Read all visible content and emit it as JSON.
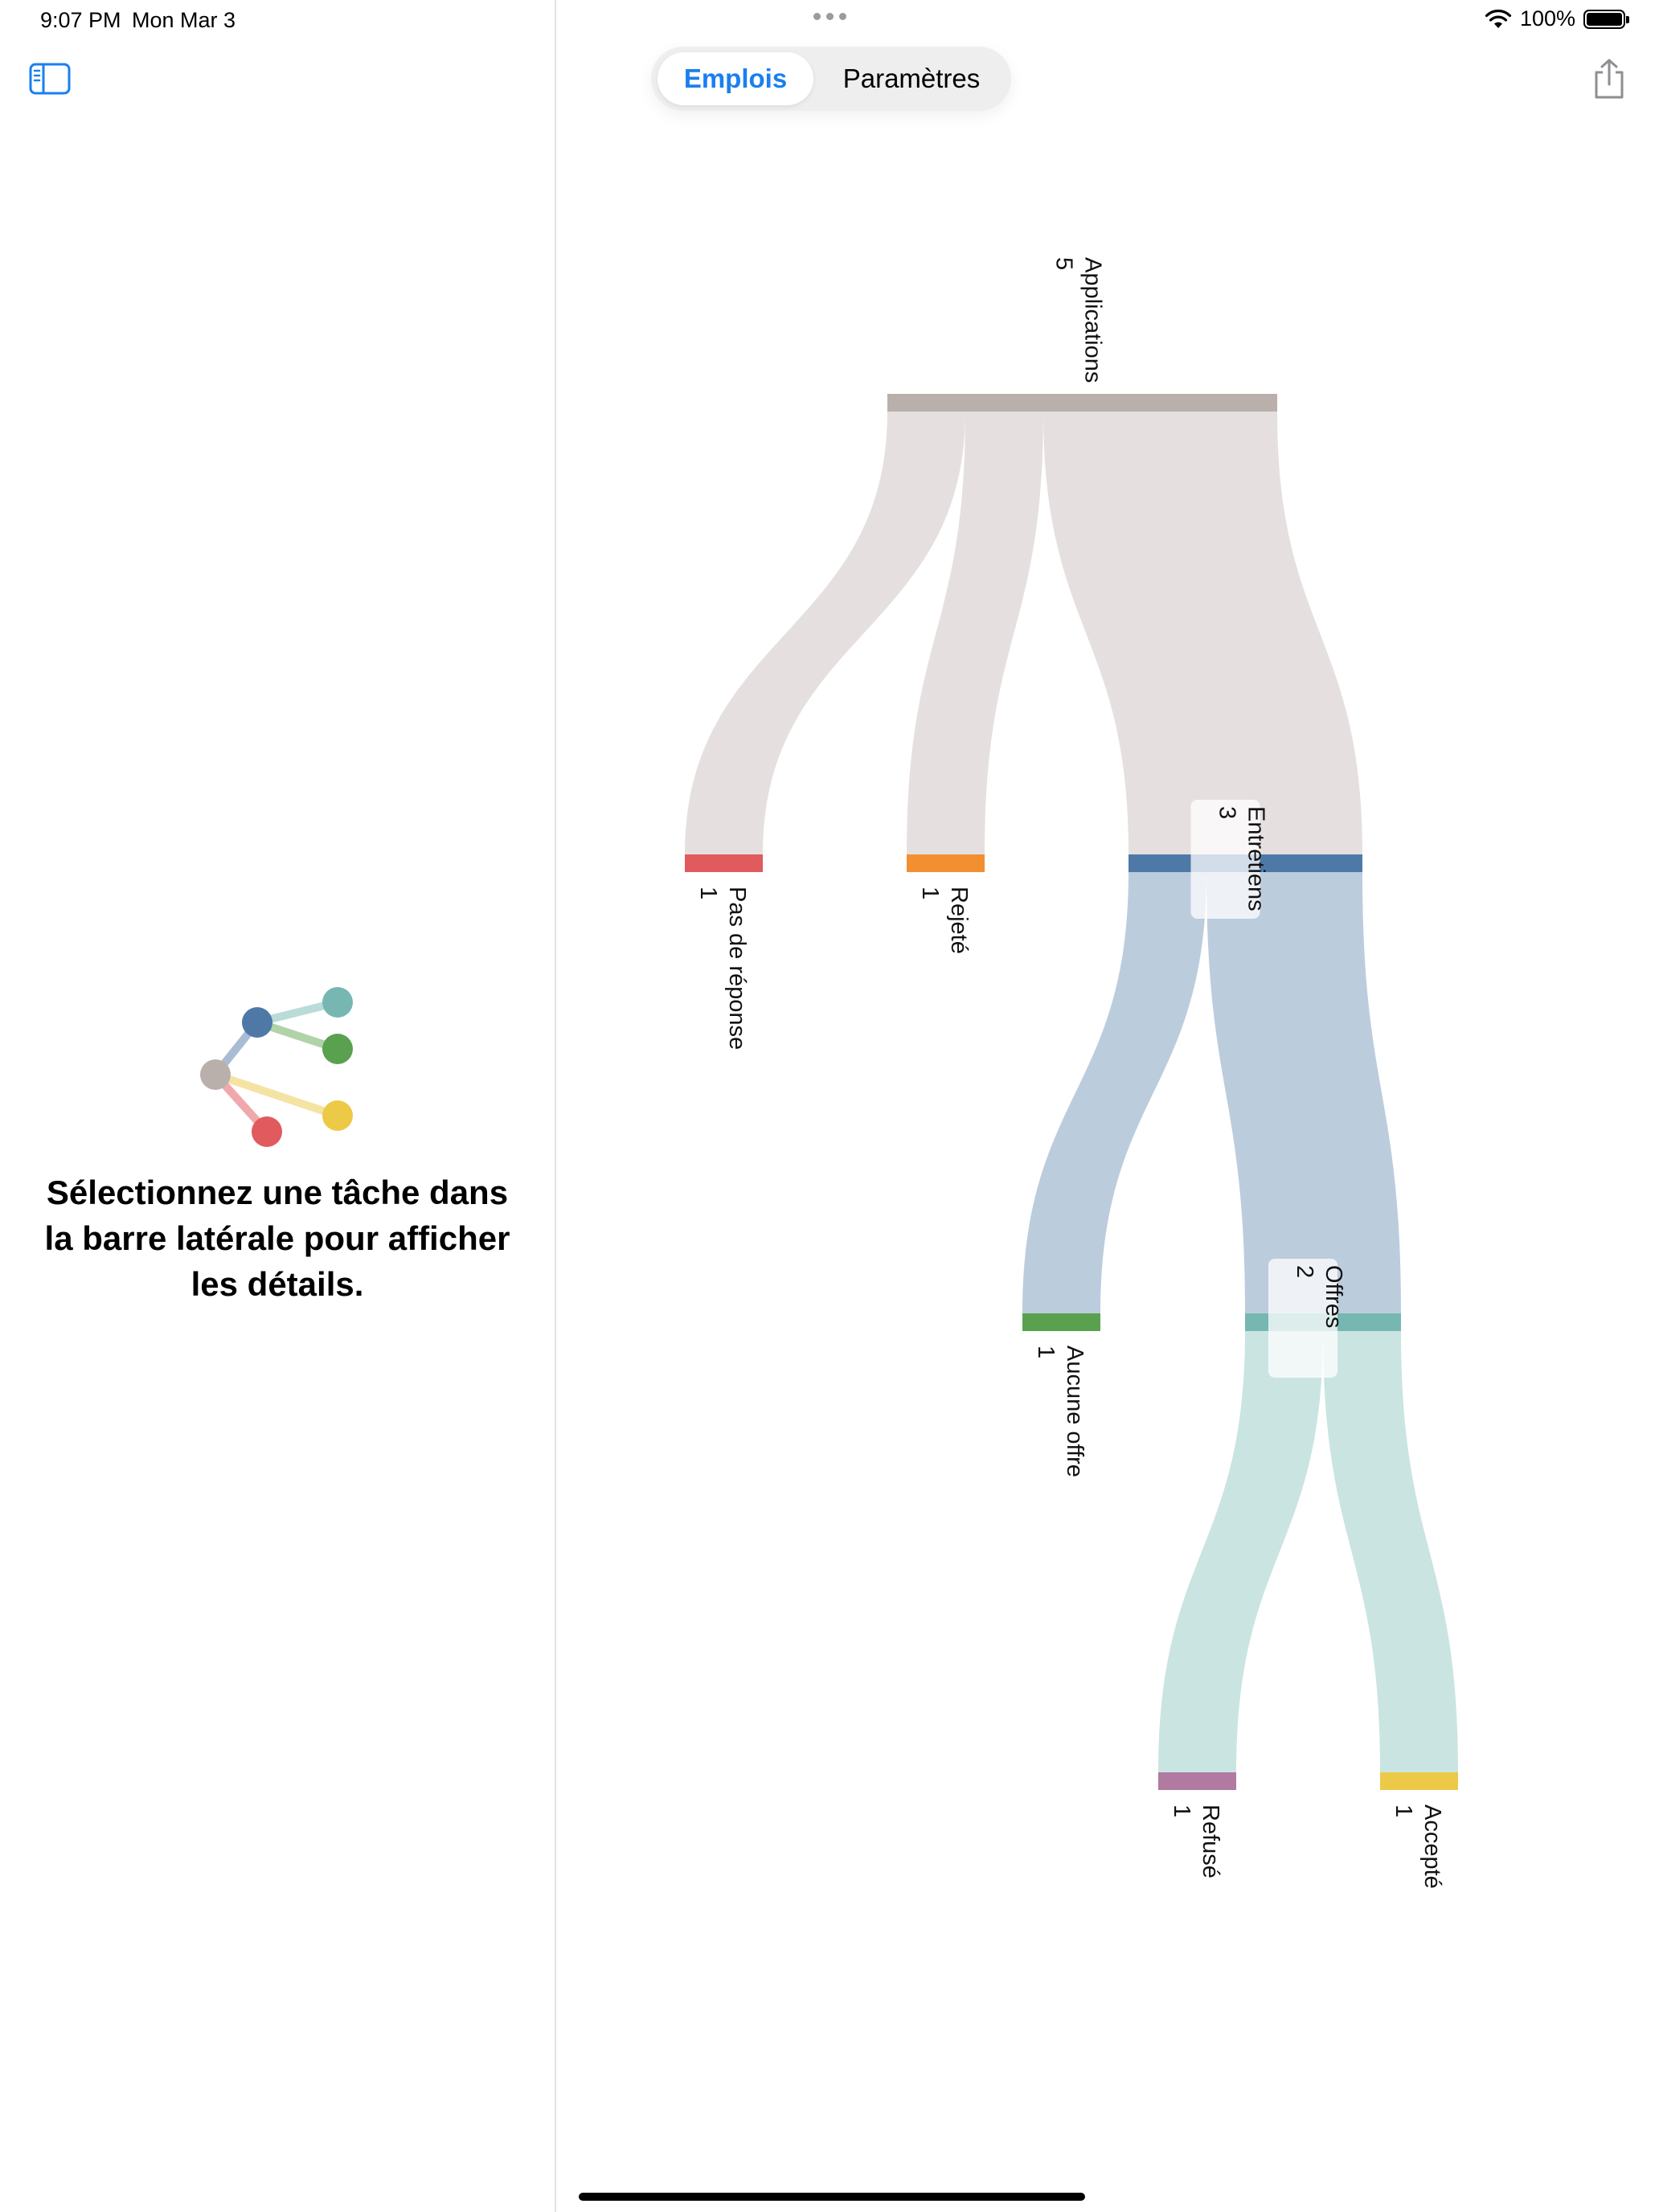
{
  "status_bar": {
    "time": "9:07 PM",
    "date": "Mon Mar 3",
    "battery": "100%"
  },
  "tabs": [
    {
      "label": "Emplois",
      "selected": true
    },
    {
      "label": "Paramètres",
      "selected": false
    }
  ],
  "empty_state": {
    "message": "Sélectionnez une tâche dans la barre latérale pour afficher les détails."
  },
  "chart_data": {
    "type": "sankey",
    "nodes": [
      {
        "id": "applications",
        "label": "Applications",
        "value": 5,
        "color": "#b9b0ab"
      },
      {
        "id": "no_response",
        "label": "Pas de réponse",
        "value": 1,
        "color": "#e05a5e"
      },
      {
        "id": "rejected",
        "label": "Rejeté",
        "value": 1,
        "color": "#f28f30"
      },
      {
        "id": "interviews",
        "label": "Entretiens",
        "value": 3,
        "color": "#4e79a7"
      },
      {
        "id": "no_offer",
        "label": "Aucune offre",
        "value": 1,
        "color": "#59a14f"
      },
      {
        "id": "offers",
        "label": "Offres",
        "value": 2,
        "color": "#76b7b2"
      },
      {
        "id": "declined",
        "label": "Refusé",
        "value": 1,
        "color": "#b07aa1"
      },
      {
        "id": "accepted",
        "label": "Accepté",
        "value": 1,
        "color": "#edc948"
      }
    ],
    "links": [
      {
        "source": "applications",
        "target": "no_response",
        "value": 1
      },
      {
        "source": "applications",
        "target": "rejected",
        "value": 1
      },
      {
        "source": "applications",
        "target": "interviews",
        "value": 3
      },
      {
        "source": "interviews",
        "target": "no_offer",
        "value": 1
      },
      {
        "source": "interviews",
        "target": "offers",
        "value": 2
      },
      {
        "source": "offers",
        "target": "declined",
        "value": 1
      },
      {
        "source": "offers",
        "target": "accepted",
        "value": 1
      }
    ]
  }
}
